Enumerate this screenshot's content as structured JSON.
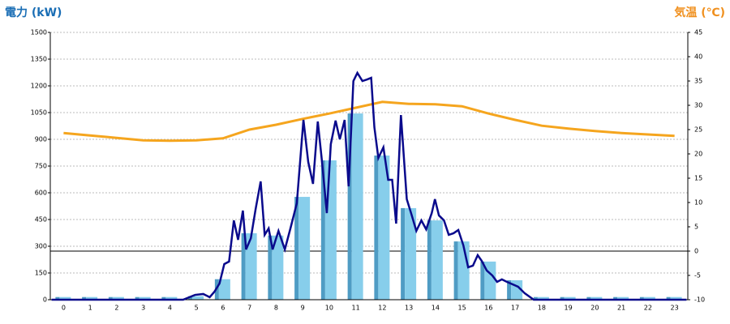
{
  "chart_data": {
    "type": "bar-line",
    "y_title": "電力 (kW)",
    "y2_title": "気温 (℃)",
    "y_title_color": "#1a6eb5",
    "y2_title_color": "#f0901e",
    "categories": [
      "0",
      "1",
      "2",
      "3",
      "4",
      "5",
      "6",
      "7",
      "8",
      "9",
      "10",
      "11",
      "12",
      "13",
      "14",
      "15",
      "16",
      "17",
      "18",
      "19",
      "20",
      "21",
      "22",
      "23"
    ],
    "bars": {
      "color": "#87ceeb",
      "side_color": "#4f9cc4",
      "values": [
        15,
        15,
        15,
        15,
        15,
        20,
        115,
        373,
        360,
        577,
        782,
        1045,
        809,
        514,
        445,
        327,
        214,
        109,
        15,
        15,
        15,
        15,
        15,
        15
      ]
    },
    "power_line": {
      "color": "#0a0a8c",
      "x": [
        -0.45,
        4.5,
        4.95,
        5.26,
        5.5,
        5.68,
        5.87,
        6.05,
        6.23,
        6.41,
        6.57,
        6.75,
        6.87,
        7.05,
        7.23,
        7.42,
        7.57,
        7.72,
        7.87,
        8.09,
        8.33,
        8.54,
        8.78,
        9.03,
        9.21,
        9.39,
        9.57,
        9.73,
        9.91,
        10.06,
        10.24,
        10.4,
        10.58,
        10.73,
        10.91,
        11.06,
        11.25,
        11.43,
        11.58,
        11.7,
        11.85,
        12.04,
        12.22,
        12.37,
        12.52,
        12.7,
        12.92,
        13.1,
        13.28,
        13.47,
        13.65,
        13.86,
        13.98,
        14.13,
        14.32,
        14.5,
        14.68,
        14.86,
        15.05,
        15.23,
        15.41,
        15.59,
        15.74,
        15.93,
        16.14,
        16.32,
        16.5,
        16.69,
        17.11,
        17.36,
        17.7,
        23.45
      ],
      "values": [
        0,
        0,
        27,
        32,
        14,
        45,
        91,
        200,
        214,
        445,
        336,
        500,
        282,
        345,
        509,
        664,
        364,
        400,
        282,
        386,
        282,
        400,
        541,
        1009,
        773,
        650,
        1000,
        773,
        486,
        873,
        1005,
        900,
        1009,
        636,
        1227,
        1273,
        1227,
        1236,
        1245,
        968,
        795,
        855,
        673,
        673,
        427,
        1036,
        564,
        477,
        386,
        445,
        395,
        486,
        564,
        473,
        445,
        364,
        373,
        391,
        305,
        182,
        191,
        250,
        218,
        164,
        136,
        100,
        114,
        100,
        73,
        36,
        0,
        0
      ]
    },
    "temperature": {
      "color": "#f5a51e",
      "axis": "y2",
      "values": [
        24.3,
        23.8,
        23.3,
        22.8,
        22.7,
        22.8,
        23.2,
        25,
        26,
        27.2,
        28.3,
        29.5,
        30.7,
        30.3,
        30.2,
        29.8,
        28.3,
        27,
        25.8,
        25.2,
        24.7,
        24.3,
        24,
        23.7
      ]
    },
    "xlim": [
      -0.5,
      23.5
    ],
    "ylim": [
      0,
      1500
    ],
    "yticks": [
      0,
      150,
      300,
      450,
      600,
      750,
      900,
      1050,
      1200,
      1350,
      1500
    ],
    "y2lim": [
      -10,
      45
    ],
    "y2ticks": [
      -10,
      -5,
      0,
      5,
      10,
      15,
      20,
      25,
      30,
      35,
      40,
      45
    ],
    "zero_line_y2": 0,
    "grid": true
  }
}
